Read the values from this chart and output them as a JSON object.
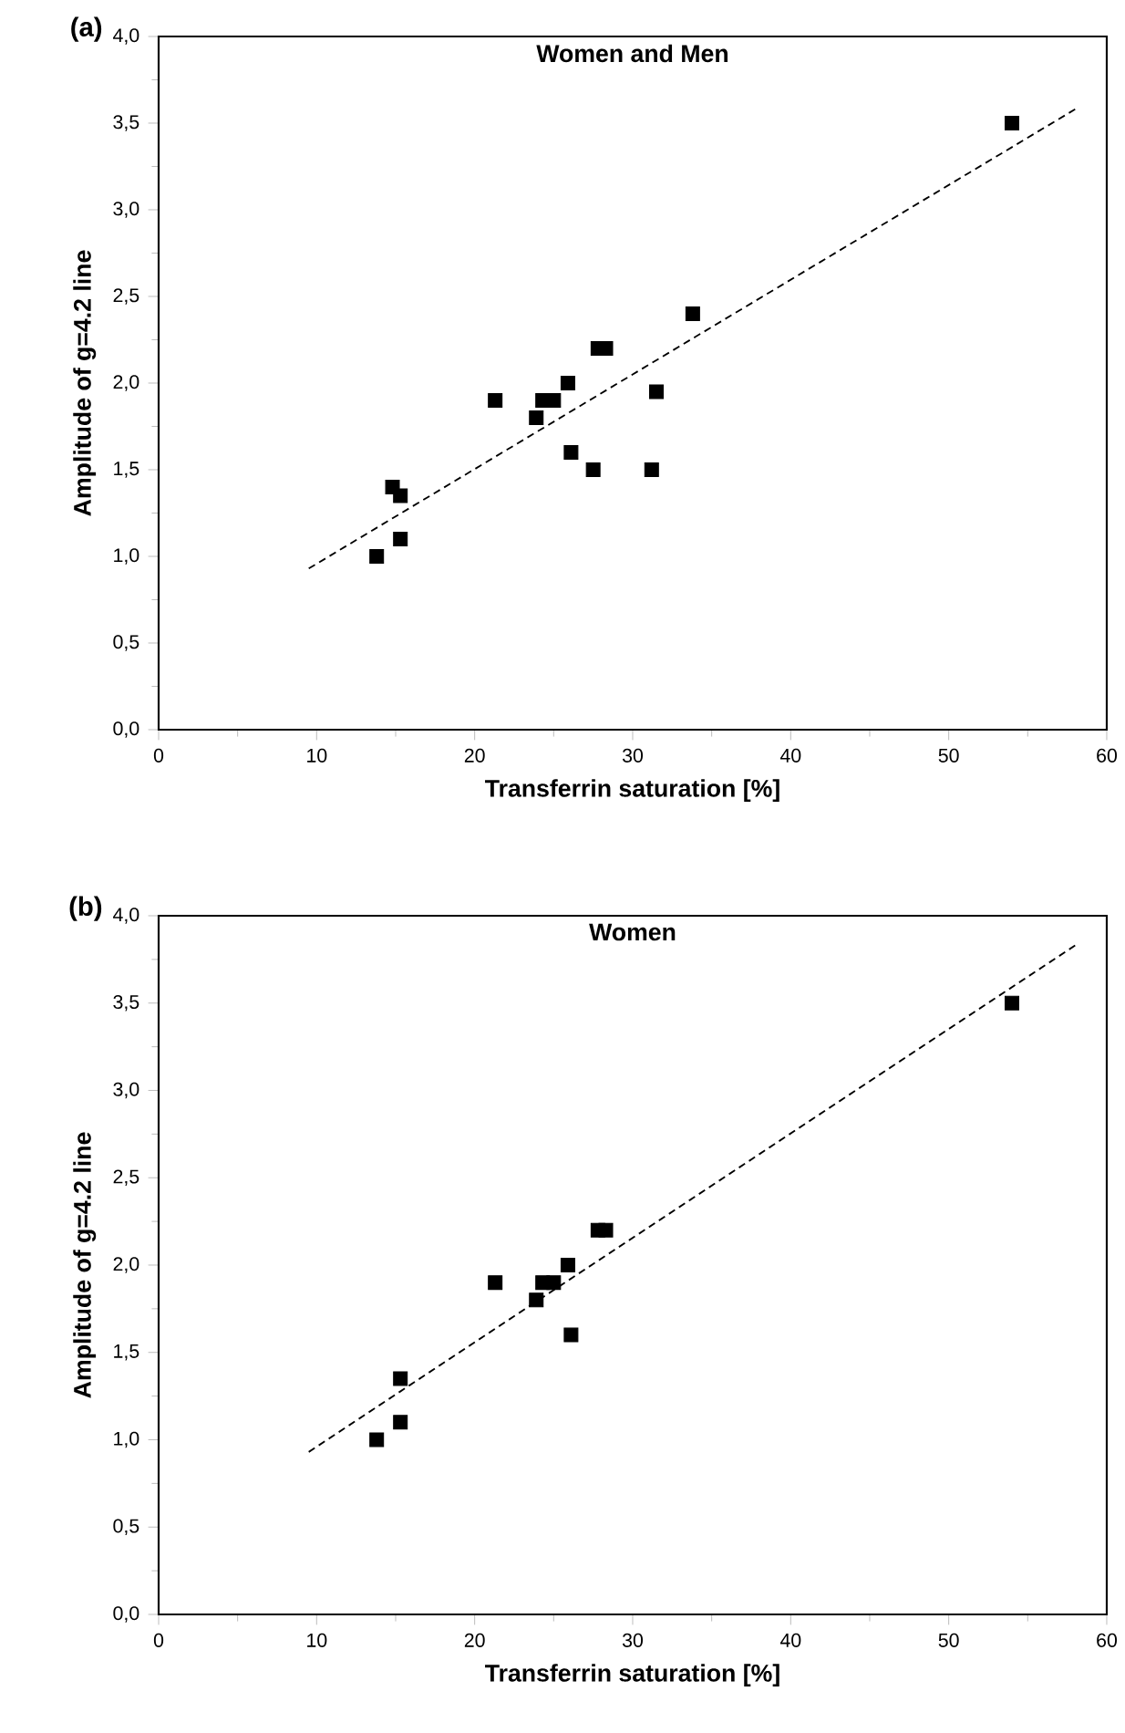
{
  "chart_data": [
    {
      "type": "scatter",
      "title": "Women and Men",
      "xlabel": "Transferrin saturation [%]",
      "ylabel": "Amplitude of g=4.2 line",
      "annotations": [
        "(a)"
      ],
      "xlim": [
        0,
        60
      ],
      "xticks": [
        0,
        10,
        20,
        30,
        40,
        50,
        60
      ],
      "ylim": [
        0,
        4
      ],
      "yticks": [
        {
          "value": 0,
          "label": "0,0"
        },
        {
          "value": 0.5,
          "label": "0,5"
        },
        {
          "value": 1,
          "label": "1,0"
        },
        {
          "value": 1.5,
          "label": "1,5"
        },
        {
          "value": 2,
          "label": "2,0"
        },
        {
          "value": 2.5,
          "label": "2,5"
        },
        {
          "value": 3,
          "label": "3,0"
        },
        {
          "value": 3.5,
          "label": "3,5"
        },
        {
          "value": 4,
          "label": "4,0"
        }
      ],
      "marker": "square",
      "series": [
        {
          "color": "#000000",
          "x": [
            13.8,
            14.8,
            15.3,
            15.3,
            21.3,
            23.9,
            24.3,
            25.0,
            25.9,
            26.1,
            27.5,
            27.8,
            28.3,
            31.2,
            31.5,
            33.8,
            54.0
          ],
          "values": [
            1.0,
            1.4,
            1.35,
            1.1,
            1.9,
            1.8,
            1.9,
            1.9,
            2.0,
            1.6,
            1.5,
            2.2,
            2.2,
            1.5,
            1.95,
            2.4,
            3.5
          ]
        },
        {
          "type": "line",
          "line_style": "dashed",
          "marker": "none",
          "color": "#000000",
          "x": [
            9.5,
            58.0
          ],
          "values": [
            0.93,
            3.58
          ]
        }
      ]
    },
    {
      "type": "scatter",
      "title": "Women",
      "xlabel": "Transferrin saturation [%]",
      "ylabel": "Amplitude of g=4.2 line",
      "annotations": [
        "(b)"
      ],
      "xlim": [
        0,
        60
      ],
      "xticks": [
        0,
        10,
        20,
        30,
        40,
        50,
        60
      ],
      "ylim": [
        0,
        4
      ],
      "yticks": [
        {
          "value": 0,
          "label": "0,0"
        },
        {
          "value": 0.5,
          "label": "0,5"
        },
        {
          "value": 1,
          "label": "1,0"
        },
        {
          "value": 1.5,
          "label": "1,5"
        },
        {
          "value": 2,
          "label": "2,0"
        },
        {
          "value": 2.5,
          "label": "2,5"
        },
        {
          "value": 3,
          "label": "3,0"
        },
        {
          "value": 3.5,
          "label": "3,5"
        },
        {
          "value": 4,
          "label": "4,0"
        }
      ],
      "marker": "square",
      "series": [
        {
          "color": "#000000",
          "x": [
            13.8,
            15.3,
            15.3,
            21.3,
            23.9,
            24.3,
            25.0,
            25.9,
            26.1,
            27.8,
            28.3,
            54.0
          ],
          "values": [
            1.0,
            1.35,
            1.1,
            1.9,
            1.8,
            1.9,
            1.9,
            2.0,
            1.6,
            2.2,
            2.2,
            3.5
          ]
        },
        {
          "type": "line",
          "line_style": "dashed",
          "marker": "none",
          "color": "#000000",
          "x": [
            9.5,
            58.0
          ],
          "values": [
            0.93,
            3.83
          ]
        }
      ]
    }
  ]
}
